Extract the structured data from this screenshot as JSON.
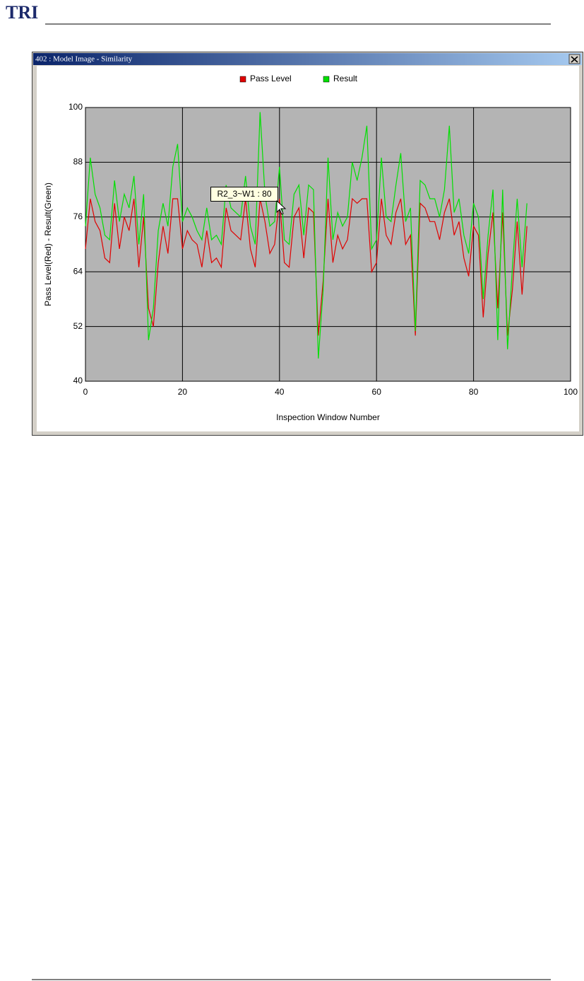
{
  "header": {
    "logo": "TRI"
  },
  "window": {
    "title": "402 : Model Image - Similarity",
    "tooltip": "R2_3~W1 : 80"
  },
  "chart_data": {
    "type": "line",
    "x_label": "Inspection Window Number",
    "y_label": "Pass Level(Red) - Result(Green)",
    "x": [
      0,
      1,
      2,
      3,
      4,
      5,
      6,
      7,
      8,
      9,
      10,
      11,
      12,
      13,
      14,
      15,
      16,
      17,
      18,
      19,
      20,
      21,
      22,
      23,
      24,
      25,
      26,
      27,
      28,
      29,
      30,
      31,
      32,
      33,
      34,
      35,
      36,
      37,
      38,
      39,
      40,
      41,
      42,
      43,
      44,
      45,
      46,
      47,
      48,
      49,
      50,
      51,
      52,
      53,
      54,
      55,
      56,
      57,
      58,
      59,
      60,
      61,
      62,
      63,
      64,
      65,
      66,
      67,
      68,
      69,
      70,
      71,
      72,
      73,
      74,
      75,
      76,
      77,
      78,
      79,
      80,
      81,
      82,
      83,
      84,
      85,
      86,
      87,
      88,
      89,
      90,
      91
    ],
    "series": [
      {
        "name": "Pass Level",
        "color": "#e00000",
        "values": [
          69,
          80,
          75,
          73,
          67,
          66,
          79,
          69,
          76,
          73,
          80,
          65,
          76,
          56,
          52,
          66,
          74,
          68,
          80,
          80,
          69,
          73,
          71,
          70,
          65,
          73,
          66,
          67,
          65,
          78,
          73,
          72,
          71,
          80,
          69,
          65,
          80,
          75,
          68,
          70,
          80,
          66,
          65,
          76,
          78,
          67,
          78,
          77,
          50,
          62,
          80,
          66,
          72,
          69,
          71,
          80,
          79,
          80,
          80,
          64,
          66,
          80,
          72,
          70,
          77,
          80,
          70,
          72,
          50,
          79,
          78,
          75,
          75,
          71,
          77,
          80,
          72,
          75,
          67,
          63,
          74,
          72,
          54,
          68,
          77,
          56,
          77,
          50,
          60,
          75,
          59,
          74
        ]
      },
      {
        "name": "Result",
        "color": "#00e000",
        "values": [
          74,
          89,
          81,
          78,
          72,
          71,
          84,
          75,
          81,
          78,
          85,
          70,
          81,
          49,
          56,
          73,
          79,
          74,
          87,
          92,
          75,
          78,
          76,
          73,
          71,
          78,
          71,
          72,
          70,
          83,
          78,
          77,
          76,
          85,
          74,
          70,
          99,
          81,
          74,
          75,
          87,
          71,
          70,
          81,
          83,
          72,
          83,
          82,
          45,
          60,
          89,
          71,
          77,
          74,
          76,
          88,
          84,
          89,
          96,
          69,
          71,
          89,
          76,
          75,
          83,
          90,
          75,
          78,
          51,
          84,
          83,
          80,
          80,
          76,
          82,
          96,
          77,
          80,
          72,
          68,
          79,
          76,
          58,
          72,
          82,
          49,
          82,
          47,
          65,
          80,
          65,
          79
        ]
      }
    ],
    "xlim": [
      0,
      100
    ],
    "xticks": [
      0,
      20,
      40,
      60,
      80,
      100
    ],
    "ylim": [
      40,
      100
    ],
    "yticks": [
      40,
      52,
      64,
      76,
      88,
      100
    ],
    "grid": true,
    "legend": "top"
  }
}
